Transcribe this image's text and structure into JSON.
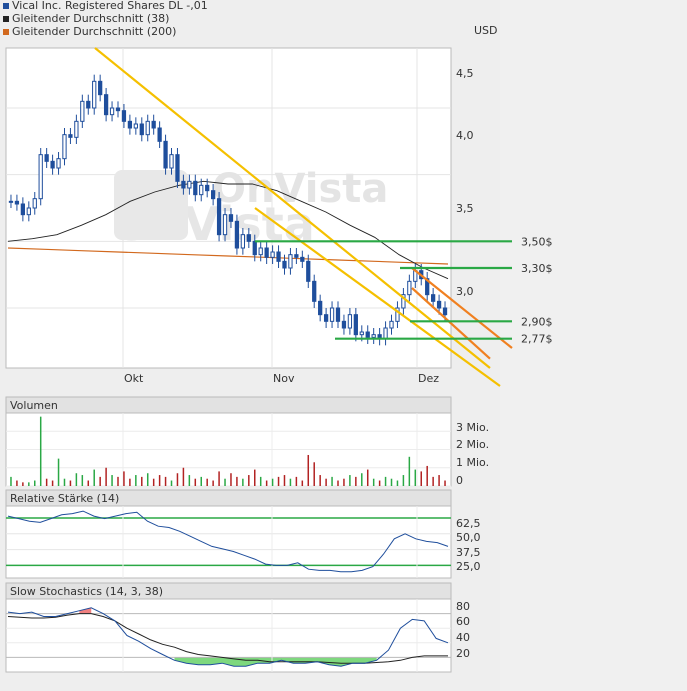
{
  "legend": {
    "items": [
      {
        "label": "Vical Inc. Registered Shares DL -,01",
        "color": "#1f4e9c"
      },
      {
        "label": "Gleitender Durchschnitt (38)",
        "color": "#222222"
      },
      {
        "label": "Gleitender Durchschnitt (200)",
        "color": "#d2691e"
      }
    ]
  },
  "price_panel": {
    "unit": "USD",
    "watermark": "OnVista",
    "y_ticks": [
      "4,5",
      "4,0",
      "3,5",
      "3,0"
    ],
    "x_ticks": [
      "Okt",
      "Nov",
      "Dez"
    ]
  },
  "annotations": {
    "levels": [
      "3,50$",
      "3,30$",
      "2,90$",
      "2,77$"
    ]
  },
  "volume_panel": {
    "title": "Volumen",
    "y_ticks": [
      "3 Mio.",
      "2 Mio.",
      "1 Mio.",
      "0"
    ]
  },
  "rsi_panel": {
    "title": "Relative Stärke (14)",
    "y_ticks": [
      "62,5",
      "50,0",
      "37,5",
      "25,0"
    ]
  },
  "stoch_panel": {
    "title": "Slow Stochastics (14, 3, 38)",
    "y_ticks": [
      "80",
      "60",
      "40",
      "20"
    ]
  },
  "chart_data": {
    "type": "candlestick",
    "x_ticks": [
      "Okt",
      "Nov",
      "Dez"
    ],
    "y_range": [
      2.55,
      4.95
    ],
    "y_ticks": [
      4.5,
      4.0,
      3.5,
      3.0
    ],
    "closes": [
      3.8,
      3.78,
      3.7,
      3.75,
      3.82,
      4.15,
      4.1,
      4.05,
      4.12,
      4.3,
      4.28,
      4.4,
      4.55,
      4.5,
      4.7,
      4.6,
      4.45,
      4.5,
      4.48,
      4.4,
      4.35,
      4.38,
      4.3,
      4.4,
      4.35,
      4.25,
      4.05,
      4.15,
      3.95,
      3.9,
      3.95,
      3.85,
      3.92,
      3.88,
      3.82,
      3.55,
      3.7,
      3.65,
      3.45,
      3.55,
      3.5,
      3.4,
      3.45,
      3.38,
      3.42,
      3.35,
      3.3,
      3.4,
      3.38,
      3.35,
      3.2,
      3.05,
      2.95,
      2.9,
      3.0,
      2.9,
      2.85,
      2.95,
      2.8,
      2.82,
      2.78,
      2.8,
      2.77,
      2.85,
      2.9,
      3.0,
      3.1,
      3.2,
      3.28,
      3.22,
      3.1,
      3.05,
      3.0,
      2.95
    ],
    "sma38": [
      3.5,
      3.52,
      3.55,
      3.62,
      3.7,
      3.8,
      3.87,
      3.92,
      3.95,
      3.93,
      3.93,
      3.88,
      3.8,
      3.72,
      3.62,
      3.53,
      3.4,
      3.3,
      3.22
    ],
    "sma200": [
      3.45,
      3.44,
      3.43,
      3.42,
      3.41,
      3.4,
      3.39,
      3.38,
      3.37,
      3.36,
      3.35,
      3.34,
      3.33
    ],
    "trendlines": [
      {
        "name": "main-downtrend",
        "color": "#f5c000",
        "from": [
          "start",
          4.72
        ],
        "to": [
          "end",
          2.62
        ]
      },
      {
        "name": "support-parallel",
        "color": "#f5c000",
        "from": [
          "mid",
          2.7
        ],
        "to": [
          "end",
          2.58
        ]
      },
      {
        "name": "channel-upper",
        "color": "#f08020",
        "from": [
          "late",
          3.3
        ],
        "to": [
          "end",
          2.7
        ]
      },
      {
        "name": "channel-lower",
        "color": "#f08020",
        "from": [
          "late",
          3.15
        ],
        "to": [
          "end",
          2.62
        ]
      }
    ],
    "levels": [
      {
        "value": 3.5,
        "label": "3,50$"
      },
      {
        "value": 3.3,
        "label": "3,30$"
      },
      {
        "value": 2.9,
        "label": "2,90$"
      },
      {
        "value": 2.77,
        "label": "2,77$"
      }
    ],
    "volume_range": [
      0,
      4
    ],
    "volume_ticks_millions": [
      3,
      2,
      1,
      0
    ],
    "volume_millions": [
      0.5,
      0.3,
      0.2,
      0.2,
      0.3,
      3.8,
      0.4,
      0.3,
      1.5,
      0.4,
      0.3,
      0.7,
      0.6,
      0.3,
      0.9,
      0.5,
      1.0,
      0.6,
      0.5,
      0.8,
      0.4,
      0.6,
      0.5,
      0.7,
      0.4,
      0.6,
      0.5,
      0.3,
      0.7,
      1.0,
      0.6,
      0.4,
      0.5,
      0.4,
      0.3,
      0.8,
      0.4,
      0.7,
      0.5,
      0.4,
      0.6,
      0.9,
      0.5,
      0.3,
      0.4,
      0.5,
      0.6,
      0.4,
      0.5,
      0.3,
      1.7,
      1.3,
      0.6,
      0.4,
      0.5,
      0.3,
      0.4,
      0.6,
      0.5,
      0.7,
      0.9,
      0.4,
      0.3,
      0.5,
      0.4,
      0.3,
      0.6,
      1.6,
      0.9,
      0.8,
      1.1,
      0.5,
      0.6,
      0.3
    ],
    "rsi_range": [
      15,
      72
    ],
    "rsi_ticks": [
      62.5,
      50.0,
      37.5,
      25.0
    ],
    "rsi": [
      64,
      62,
      60,
      59,
      62,
      65,
      66,
      68,
      64,
      62,
      64,
      66,
      67,
      60,
      56,
      55,
      52,
      48,
      44,
      40,
      38,
      36,
      33,
      30,
      26,
      25,
      25,
      27,
      22,
      21,
      21,
      20,
      20,
      21,
      24,
      34,
      46,
      50,
      46,
      44,
      43,
      40
    ],
    "stoch_range": [
      0,
      100
    ],
    "stoch_ticks": [
      80,
      60,
      40,
      20
    ],
    "stoch_k": [
      82,
      80,
      82,
      76,
      76,
      80,
      84,
      88,
      80,
      70,
      50,
      42,
      32,
      24,
      16,
      12,
      10,
      10,
      12,
      8,
      8,
      12,
      12,
      16,
      12,
      12,
      14,
      10,
      8,
      12,
      12,
      16,
      30,
      60,
      72,
      70,
      46,
      40
    ],
    "stoch_d": [
      76,
      75,
      74,
      74,
      75,
      78,
      80,
      80,
      76,
      70,
      60,
      52,
      44,
      38,
      34,
      28,
      24,
      22,
      20,
      18,
      16,
      16,
      14,
      14,
      14,
      14,
      14,
      13,
      12,
      12,
      12,
      13,
      14,
      16,
      20,
      22,
      22,
      22
    ],
    "stoch_overbought": 80,
    "stoch_oversold": 20
  }
}
